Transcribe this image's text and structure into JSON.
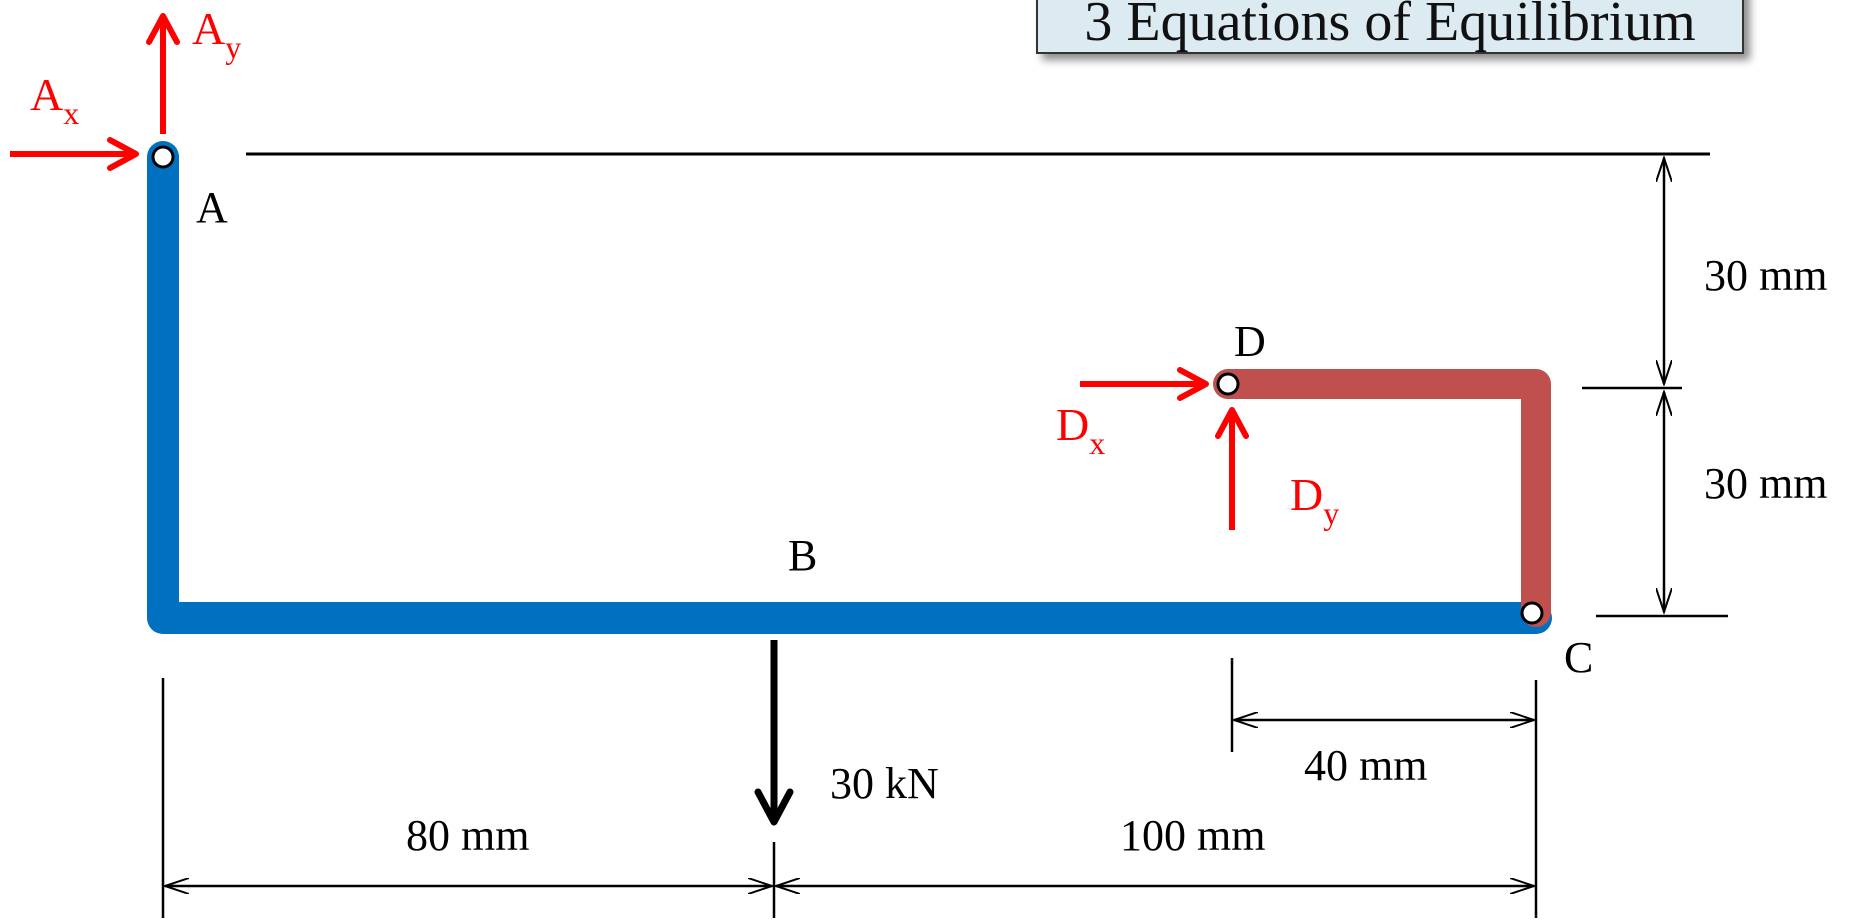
{
  "title": "3 Equations of Equilibrium",
  "points": {
    "A": "A",
    "B": "B",
    "C": "C",
    "D": "D"
  },
  "forces": {
    "Ax": {
      "base": "A",
      "sub": "x"
    },
    "Ay": {
      "base": "A",
      "sub": "y"
    },
    "Dx": {
      "base": "D",
      "sub": "x"
    },
    "Dy": {
      "base": "D",
      "sub": "y"
    },
    "load": "30 kN"
  },
  "dimensions": {
    "AB_horizontal": "80 mm",
    "BC_horizontal": "100 mm",
    "DC_horizontal": "40 mm",
    "A_to_D_vertical": "30 mm",
    "D_to_C_vertical": "30 mm"
  },
  "colors": {
    "member_ABC": "#0070c0",
    "member_DC": "#c0504d",
    "reaction_forces": "#ff0000",
    "applied_load": "#000000",
    "title_box_fill": "#dcebf2"
  }
}
